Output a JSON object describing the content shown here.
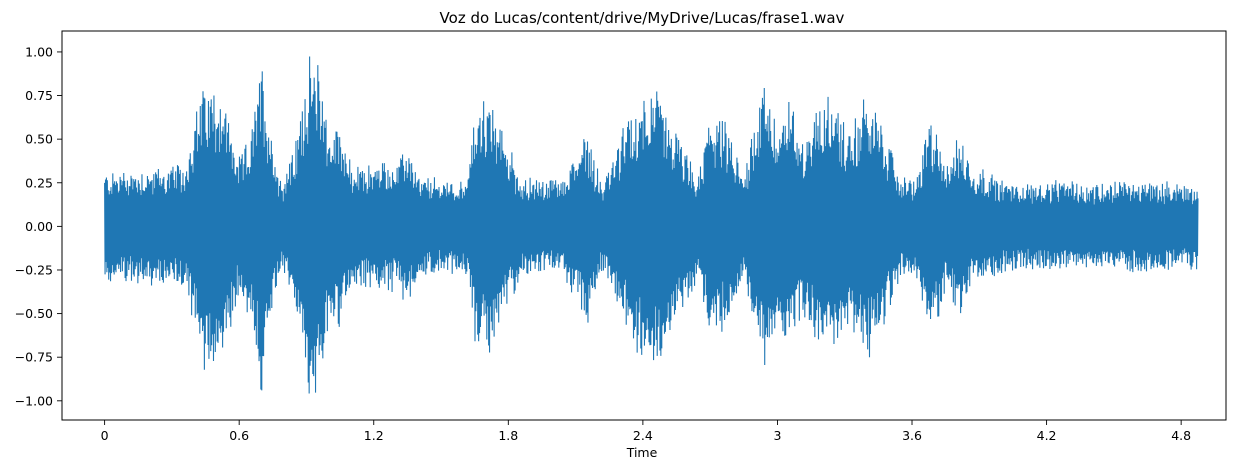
{
  "chart_data": {
    "type": "line",
    "title": "Voz do Lucas/content/drive/MyDrive/Lucas/frase1.wav",
    "xlabel": "Time",
    "ylabel": "",
    "xlim": [
      -0.19,
      5.0
    ],
    "ylim": [
      -1.11,
      1.12
    ],
    "grid": false,
    "legend": "none",
    "x_ticks": [
      0,
      0.6,
      1.2,
      1.8,
      2.4,
      3.0,
      3.6,
      4.2,
      4.8
    ],
    "x_tick_labels": [
      "0",
      "0.6",
      "1.2",
      "1.8",
      "2.4",
      "3",
      "3.6",
      "4.2",
      "4.8"
    ],
    "y_ticks": [
      -1.0,
      -0.75,
      -0.5,
      -0.25,
      0.0,
      0.25,
      0.5,
      0.75,
      1.0
    ],
    "y_tick_labels": [
      "−1.00",
      "−0.75",
      "−0.50",
      "−0.25",
      "0.00",
      "0.25",
      "0.50",
      "0.75",
      "1.00"
    ],
    "series": [
      {
        "color": "#1f77b4",
        "duration": 4.875,
        "envelope_time": [
          0,
          0.36,
          0.39,
          0.44,
          0.52,
          0.6,
          0.66,
          0.69,
          0.7,
          0.73,
          0.78,
          0.8,
          0.86,
          0.9,
          0.95,
          0.97,
          1.0,
          1.05,
          1.1,
          1.2,
          1.28,
          1.3,
          1.35,
          1.4,
          1.55,
          1.62,
          1.66,
          1.72,
          1.8,
          1.86,
          1.92,
          1.95,
          2.05,
          2.15,
          2.22,
          2.3,
          2.4,
          2.45,
          2.5,
          2.65,
          2.7,
          2.78,
          2.85,
          2.9,
          2.95,
          3.0,
          3.05,
          3.12,
          3.17,
          3.22,
          3.26,
          3.3,
          3.35,
          3.4,
          3.5,
          3.55,
          3.62,
          3.68,
          3.72,
          3.75,
          3.82,
          3.87,
          3.92,
          4.0,
          4.1,
          4.2,
          4.4,
          4.6,
          4.8,
          4.875
        ],
        "envelope_amplitude": [
          0.33,
          0.37,
          0.6,
          0.86,
          0.84,
          0.4,
          0.6,
          0.95,
          1.01,
          0.7,
          0.3,
          0.3,
          0.55,
          0.99,
          1.0,
          0.95,
          0.55,
          0.65,
          0.35,
          0.38,
          0.4,
          0.35,
          0.5,
          0.3,
          0.28,
          0.3,
          0.78,
          0.75,
          0.5,
          0.28,
          0.3,
          0.28,
          0.3,
          0.6,
          0.25,
          0.55,
          0.8,
          0.89,
          0.7,
          0.3,
          0.7,
          0.6,
          0.3,
          0.7,
          0.88,
          0.6,
          0.75,
          0.55,
          0.7,
          0.82,
          0.78,
          0.6,
          0.65,
          0.82,
          0.5,
          0.3,
          0.3,
          0.65,
          0.55,
          0.4,
          0.55,
          0.35,
          0.35,
          0.28,
          0.26,
          0.27,
          0.26,
          0.28,
          0.26,
          0.25
        ]
      }
    ]
  }
}
